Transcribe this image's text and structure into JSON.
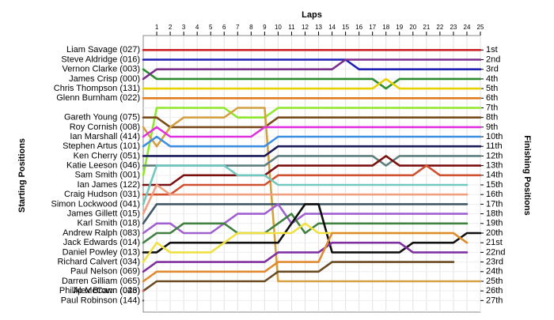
{
  "chart_data": {
    "type": "line",
    "title": "Laps",
    "y_label_left": "Starting Positions",
    "y_label_right": "Finishing Positions",
    "invert_y": true,
    "grid": true,
    "x": [
      0,
      1,
      2,
      3,
      4,
      5,
      6,
      7,
      8,
      9,
      10,
      11,
      12,
      13,
      14,
      15,
      16,
      17,
      18,
      19,
      20,
      21,
      22,
      23,
      24,
      25
    ],
    "xlim": [
      0,
      25
    ],
    "xticks": [
      1,
      2,
      3,
      4,
      5,
      6,
      7,
      8,
      9,
      10,
      11,
      12,
      13,
      14,
      15,
      16,
      17,
      18,
      19,
      20,
      21,
      22,
      23,
      24,
      25
    ],
    "ylim": [
      -0.5,
      28.2
    ],
    "yticks": [
      {
        "value": 1,
        "label": "1st"
      },
      {
        "value": 2,
        "label": "2nd"
      },
      {
        "value": 3,
        "label": "3rd"
      },
      {
        "value": 4,
        "label": "4th"
      },
      {
        "value": 5,
        "label": "5th"
      },
      {
        "value": 6,
        "label": "6th"
      },
      {
        "value": 7,
        "label": "7th"
      },
      {
        "value": 8,
        "label": "8th"
      },
      {
        "value": 9,
        "label": "9th"
      },
      {
        "value": 10,
        "label": "10th"
      },
      {
        "value": 11,
        "label": "11th"
      },
      {
        "value": 12,
        "label": "12th"
      },
      {
        "value": 13,
        "label": "13th"
      },
      {
        "value": 14,
        "label": "14th"
      },
      {
        "value": 15,
        "label": "15th"
      },
      {
        "value": 16,
        "label": "16th"
      },
      {
        "value": 17,
        "label": "17th"
      },
      {
        "value": 18,
        "label": "18th"
      },
      {
        "value": 19,
        "label": "19th"
      },
      {
        "value": 20,
        "label": "20th"
      },
      {
        "value": 21,
        "label": "21st"
      },
      {
        "value": 22,
        "label": "22nd"
      },
      {
        "value": 23,
        "label": "23rd"
      },
      {
        "value": 24,
        "label": "24th"
      },
      {
        "value": 25,
        "label": "25th"
      },
      {
        "value": 26,
        "label": "26th"
      },
      {
        "value": 27,
        "label": "27th"
      }
    ],
    "series": [
      {
        "name": "Liam Savage (027)",
        "color": "#cc2222",
        "values": [
          1,
          1,
          1,
          1,
          1,
          1,
          1,
          1,
          1,
          1,
          1,
          1,
          1,
          1,
          1,
          1,
          1,
          1,
          1,
          1,
          1,
          1,
          1,
          1,
          1,
          1
        ]
      },
      {
        "name": "Steve Aldridge (016)",
        "color": "#1f1fb4",
        "values": [
          2,
          2,
          2,
          2,
          2,
          2,
          2,
          2,
          2,
          2,
          2,
          2,
          2,
          2,
          2,
          2,
          3,
          3,
          3,
          3,
          3,
          3,
          3,
          3,
          3,
          3
        ]
      },
      {
        "name": "Vernon Clarke (003)",
        "color": "#2e8b2e",
        "values": [
          3,
          4,
          4,
          4,
          4,
          4,
          4,
          4,
          4,
          4,
          4,
          4,
          4,
          4,
          4,
          4,
          4,
          4,
          5,
          4,
          4,
          4,
          4,
          4,
          4,
          4
        ]
      },
      {
        "name": "James Crisp (000)",
        "color": "#7b2d8e",
        "values": [
          4,
          3,
          3,
          3,
          3,
          3,
          3,
          3,
          3,
          3,
          3,
          3,
          3,
          3,
          3,
          2,
          2,
          2,
          2,
          2,
          2,
          2,
          2,
          2,
          2,
          2
        ]
      },
      {
        "name": "Chris Thompson (131)",
        "color": "#e6d200",
        "values": [
          5,
          5,
          5,
          5,
          5,
          5,
          5,
          5,
          5,
          5,
          5,
          5,
          5,
          5,
          5,
          5,
          5,
          5,
          4,
          5,
          5,
          5,
          5,
          5,
          5,
          5
        ]
      },
      {
        "name": "Glenn Burnham (022)",
        "color": "#e07b20",
        "values": [
          6,
          6,
          6,
          6,
          6,
          6,
          6,
          6,
          6,
          6,
          6,
          6,
          6,
          6,
          6,
          6,
          6,
          6,
          6,
          6,
          6,
          6,
          6,
          6,
          6,
          6
        ]
      },
      {
        "name": "Sam Smith (001)",
        "color": "#8ee82a",
        "values": [
          14,
          7,
          7,
          7,
          7,
          7,
          7,
          8,
          8,
          8,
          7,
          7,
          7,
          7,
          7,
          7,
          7,
          7,
          7,
          7,
          7,
          7,
          7,
          7,
          7,
          7
        ]
      },
      {
        "name": "Gareth Young (075)",
        "color": "#7a4a1a",
        "values": [
          8,
          8,
          9,
          9,
          9,
          9,
          9,
          9,
          9,
          9,
          8,
          8,
          8,
          8,
          8,
          8,
          8,
          8,
          8,
          8,
          8,
          8,
          8,
          8,
          8,
          8
        ]
      },
      {
        "name": "Roy Cornish (008)",
        "color": "#d4a040",
        "values": [
          9,
          11,
          9,
          8,
          8,
          8,
          8,
          7,
          7,
          7,
          25,
          25,
          25,
          25,
          25,
          25,
          25,
          25,
          25,
          25,
          25,
          25,
          25,
          25,
          25,
          25
        ]
      },
      {
        "name": "Ian Marshall (414)",
        "color": "#e030e0",
        "values": [
          10,
          9,
          10,
          10,
          10,
          10,
          10,
          10,
          10,
          9,
          9,
          9,
          9,
          9,
          9,
          9,
          9,
          9,
          9,
          9,
          9,
          9,
          9,
          9,
          9,
          9
        ]
      },
      {
        "name": "Stephen Artus (101)",
        "color": "#3c8ee0",
        "values": [
          11,
          10,
          11,
          11,
          11,
          11,
          11,
          11,
          11,
          11,
          10,
          10,
          10,
          10,
          10,
          10,
          10,
          10,
          10,
          10,
          10,
          10,
          10,
          10,
          10,
          10
        ]
      },
      {
        "name": "Ken Cherry (051)",
        "color": "#1a1a5a",
        "values": [
          12,
          12,
          12,
          12,
          12,
          12,
          12,
          12,
          12,
          12,
          11,
          11,
          11,
          11,
          11,
          11,
          11,
          11,
          11,
          11,
          11,
          11,
          11,
          11,
          11,
          11
        ]
      },
      {
        "name": "Katie Leeson (046)",
        "color": "#5f7f7f",
        "values": [
          13,
          13,
          13,
          13,
          13,
          13,
          13,
          13,
          13,
          13,
          12,
          12,
          12,
          12,
          12,
          12,
          12,
          12,
          13,
          12,
          12,
          12,
          12,
          12,
          12,
          12
        ]
      },
      {
        "name": "Ian James (122)",
        "color": "#7a1010",
        "values": [
          15,
          15,
          15,
          14,
          14,
          14,
          14,
          14,
          14,
          14,
          13,
          13,
          13,
          13,
          13,
          13,
          13,
          13,
          12,
          13,
          13,
          13,
          13,
          13,
          13,
          13
        ]
      },
      {
        "name": "Craig Hudson (031)",
        "color": "#d05030",
        "values": [
          16,
          16,
          16,
          15,
          15,
          15,
          15,
          15,
          15,
          15,
          14,
          14,
          14,
          14,
          14,
          14,
          14,
          14,
          14,
          14,
          14,
          13,
          14,
          14,
          14,
          14
        ]
      },
      {
        "name": "Simon Lockwood (041)",
        "color": "#70c8c0",
        "values": [
          17,
          13,
          13,
          13,
          13,
          13,
          13,
          14,
          14,
          14,
          15,
          15,
          15,
          15,
          15,
          15,
          15,
          15,
          15,
          15,
          15,
          15,
          15,
          15,
          15,
          null
        ]
      },
      {
        "name": "James Gillett (015)",
        "color": "#f0a080",
        "values": [
          18,
          15,
          16,
          16,
          16,
          16,
          16,
          16,
          16,
          16,
          16,
          16,
          16,
          16,
          16,
          16,
          16,
          16,
          16,
          16,
          16,
          16,
          16,
          16,
          16,
          null
        ]
      },
      {
        "name": "Karl Smith (018)",
        "color": "#405868",
        "values": [
          19,
          17,
          17,
          17,
          17,
          17,
          17,
          17,
          17,
          17,
          17,
          17,
          17,
          17,
          17,
          17,
          17,
          17,
          17,
          17,
          17,
          17,
          17,
          17,
          17,
          null
        ]
      },
      {
        "name": "Andrew Ralph (083)",
        "color": "#a060d0",
        "values": [
          20,
          19,
          19,
          20,
          20,
          20,
          19,
          18,
          18,
          18,
          17,
          19,
          18,
          18,
          18,
          18,
          18,
          18,
          18,
          18,
          18,
          18,
          18,
          18,
          18,
          null
        ]
      },
      {
        "name": "Jack Edwards (014)",
        "color": "#408040",
        "values": [
          21,
          20,
          20,
          19,
          19,
          19,
          19,
          20,
          20,
          20,
          19,
          18,
          20,
          19,
          19,
          19,
          19,
          19,
          19,
          19,
          19,
          19,
          19,
          19,
          19,
          null
        ]
      },
      {
        "name": "Daniel Powley (013)",
        "color": "#101010",
        "values": [
          22,
          22,
          21,
          21,
          21,
          21,
          21,
          21,
          21,
          21,
          21,
          19,
          17,
          17,
          22,
          22,
          22,
          22,
          22,
          22,
          21,
          21,
          21,
          21,
          20,
          20
        ]
      },
      {
        "name": "Richard Calvert (034)",
        "color": "#f0e040",
        "values": [
          23,
          21,
          22,
          22,
          22,
          22,
          21,
          20,
          20,
          20,
          20,
          20,
          19,
          20,
          20,
          20,
          20,
          20,
          20,
          20,
          20,
          20,
          20,
          20,
          21,
          null
        ]
      },
      {
        "name": "Paul Nelson (069)",
        "color": "#8030a0",
        "values": [
          24,
          23,
          23,
          23,
          23,
          23,
          23,
          23,
          23,
          23,
          22,
          22,
          22,
          22,
          21,
          21,
          21,
          21,
          21,
          21,
          22,
          22,
          22,
          22,
          22,
          null
        ]
      },
      {
        "name": "Darren Gilliam (065)",
        "color": "#e08a30",
        "values": [
          25,
          24,
          24,
          24,
          24,
          24,
          24,
          24,
          24,
          24,
          23,
          23,
          23,
          23,
          20,
          20,
          20,
          20,
          20,
          20,
          20,
          20,
          20,
          20,
          21,
          null
        ]
      },
      {
        "name": "Alex Brown (023)",
        "color": "#6a4a20",
        "values": [
          26,
          25,
          25,
          25,
          25,
          25,
          25,
          25,
          25,
          25,
          24,
          24,
          24,
          24,
          23,
          23,
          23,
          23,
          23,
          23,
          23,
          23,
          23,
          23,
          null,
          null
        ]
      },
      {
        "name": "Phillip McCann (046)",
        "color": "#e06060",
        "values": [
          26,
          null,
          null,
          null,
          null,
          null,
          null,
          null,
          null,
          null,
          null,
          null,
          null,
          null,
          null,
          null,
          null,
          null,
          null,
          null,
          null,
          null,
          null,
          null,
          null,
          null
        ]
      },
      {
        "name": "Paul Robinson (144)",
        "color": "#606060",
        "values": [
          27,
          null,
          null,
          null,
          null,
          null,
          null,
          null,
          null,
          null,
          null,
          null,
          null,
          null,
          null,
          null,
          null,
          null,
          null,
          null,
          null,
          null,
          null,
          null,
          null,
          null
        ]
      }
    ]
  }
}
